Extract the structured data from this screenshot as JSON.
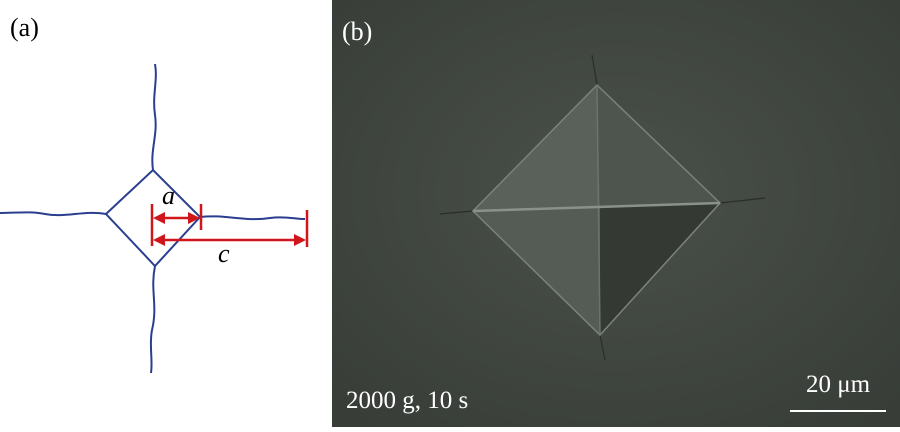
{
  "panel_a": {
    "label": "(a)",
    "diagonal_label": "a",
    "crack_label": "c"
  },
  "panel_b": {
    "label": "(b)",
    "condition": "2000 g, 10 s",
    "scale_bar": "20 μm"
  }
}
